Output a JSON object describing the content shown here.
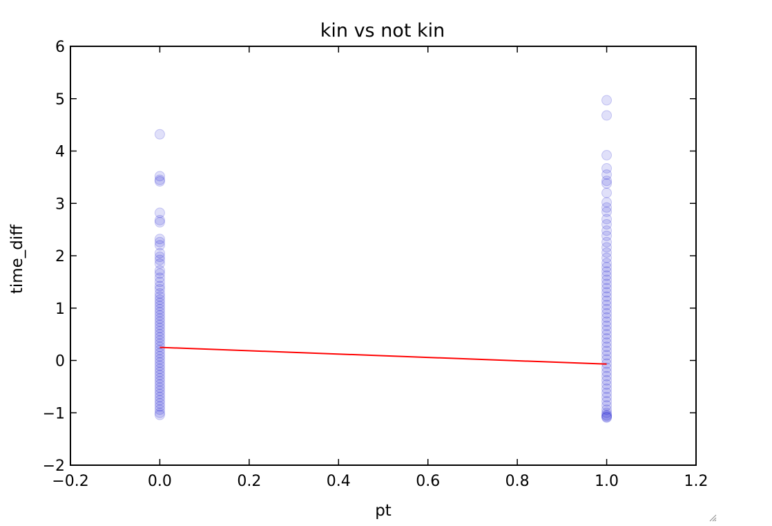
{
  "chart_data": {
    "type": "scatter",
    "title": "kin vs not kin",
    "xlabel": "pt",
    "ylabel": "time_diff",
    "xlim": [
      -0.2,
      1.2
    ],
    "ylim": [
      -2,
      6
    ],
    "xticks": [
      -0.2,
      0.0,
      0.2,
      0.4,
      0.6,
      0.8,
      1.0,
      1.2
    ],
    "yticks": [
      -2,
      -1,
      0,
      1,
      2,
      3,
      4,
      5,
      6
    ],
    "xtick_labels": [
      "−0.2",
      "0.0",
      "0.2",
      "0.4",
      "0.6",
      "0.8",
      "1.0",
      "1.2"
    ],
    "ytick_labels": [
      "−2",
      "−1",
      "0",
      "1",
      "2",
      "3",
      "4",
      "5",
      "6"
    ],
    "grid": false,
    "legend": "none",
    "series": [
      {
        "type": "scatter",
        "color": "#0000cc",
        "alpha": 0.12,
        "points": [
          {
            "x": 0,
            "y": 4.32
          },
          {
            "x": 0,
            "y": 3.52
          },
          {
            "x": 0,
            "y": 3.45
          },
          {
            "x": 0,
            "y": 3.42
          },
          {
            "x": 0,
            "y": 2.82
          },
          {
            "x": 0,
            "y": 2.68
          },
          {
            "x": 0,
            "y": 2.64
          },
          {
            "x": 0,
            "y": 2.32
          },
          {
            "x": 0,
            "y": 2.26
          },
          {
            "x": 0,
            "y": 2.2
          },
          {
            "x": 0,
            "y": 2.05
          },
          {
            "x": 0,
            "y": 1.98
          },
          {
            "x": 0,
            "y": 1.92
          },
          {
            "x": 0,
            "y": 1.85
          },
          {
            "x": 0,
            "y": 1.72
          },
          {
            "x": 0,
            "y": 1.66
          },
          {
            "x": 0,
            "y": 1.58
          },
          {
            "x": 0,
            "y": 1.5
          },
          {
            "x": 0,
            "y": 1.42
          },
          {
            "x": 0,
            "y": 1.36
          },
          {
            "x": 0,
            "y": 1.28
          },
          {
            "x": 0,
            "y": 1.22
          },
          {
            "x": 0,
            "y": 1.16
          },
          {
            "x": 0,
            "y": 1.1
          },
          {
            "x": 0,
            "y": 1.04
          },
          {
            "x": 0,
            "y": 0.98
          },
          {
            "x": 0,
            "y": 0.92
          },
          {
            "x": 0,
            "y": 0.86
          },
          {
            "x": 0,
            "y": 0.8
          },
          {
            "x": 0,
            "y": 0.74
          },
          {
            "x": 0,
            "y": 0.68
          },
          {
            "x": 0,
            "y": 0.62
          },
          {
            "x": 0,
            "y": 0.56
          },
          {
            "x": 0,
            "y": 0.5
          },
          {
            "x": 0,
            "y": 0.44
          },
          {
            "x": 0,
            "y": 0.38
          },
          {
            "x": 0,
            "y": 0.32
          },
          {
            "x": 0,
            "y": 0.26
          },
          {
            "x": 0,
            "y": 0.2
          },
          {
            "x": 0,
            "y": 0.14
          },
          {
            "x": 0,
            "y": 0.08
          },
          {
            "x": 0,
            "y": 0.02
          },
          {
            "x": 0,
            "y": -0.04
          },
          {
            "x": 0,
            "y": -0.1
          },
          {
            "x": 0,
            "y": -0.16
          },
          {
            "x": 0,
            "y": -0.22
          },
          {
            "x": 0,
            "y": -0.28
          },
          {
            "x": 0,
            "y": -0.34
          },
          {
            "x": 0,
            "y": -0.4
          },
          {
            "x": 0,
            "y": -0.46
          },
          {
            "x": 0,
            "y": -0.52
          },
          {
            "x": 0,
            "y": -0.58
          },
          {
            "x": 0,
            "y": -0.64
          },
          {
            "x": 0,
            "y": -0.7
          },
          {
            "x": 0,
            "y": -0.76
          },
          {
            "x": 0,
            "y": -0.82
          },
          {
            "x": 0,
            "y": -0.88
          },
          {
            "x": 0,
            "y": -0.94
          },
          {
            "x": 0,
            "y": -1.0
          },
          {
            "x": 0,
            "y": -1.04
          },
          {
            "x": 1,
            "y": 4.97
          },
          {
            "x": 1,
            "y": 4.68
          },
          {
            "x": 1,
            "y": 3.92
          },
          {
            "x": 1,
            "y": 3.67
          },
          {
            "x": 1,
            "y": 3.55
          },
          {
            "x": 1,
            "y": 3.43
          },
          {
            "x": 1,
            "y": 3.38
          },
          {
            "x": 1,
            "y": 3.2
          },
          {
            "x": 1,
            "y": 3.02
          },
          {
            "x": 1,
            "y": 2.92
          },
          {
            "x": 1,
            "y": 2.84
          },
          {
            "x": 1,
            "y": 2.7
          },
          {
            "x": 1,
            "y": 2.6
          },
          {
            "x": 1,
            "y": 2.48
          },
          {
            "x": 1,
            "y": 2.38
          },
          {
            "x": 1,
            "y": 2.26
          },
          {
            "x": 1,
            "y": 2.16
          },
          {
            "x": 1,
            "y": 2.06
          },
          {
            "x": 1,
            "y": 1.96
          },
          {
            "x": 1,
            "y": 1.86
          },
          {
            "x": 1,
            "y": 1.78
          },
          {
            "x": 1,
            "y": 1.7
          },
          {
            "x": 1,
            "y": 1.62
          },
          {
            "x": 1,
            "y": 1.54
          },
          {
            "x": 1,
            "y": 1.46
          },
          {
            "x": 1,
            "y": 1.38
          },
          {
            "x": 1,
            "y": 1.3
          },
          {
            "x": 1,
            "y": 1.22
          },
          {
            "x": 1,
            "y": 1.14
          },
          {
            "x": 1,
            "y": 1.06
          },
          {
            "x": 1,
            "y": 0.98
          },
          {
            "x": 1,
            "y": 0.9
          },
          {
            "x": 1,
            "y": 0.82
          },
          {
            "x": 1,
            "y": 0.74
          },
          {
            "x": 1,
            "y": 0.66
          },
          {
            "x": 1,
            "y": 0.58
          },
          {
            "x": 1,
            "y": 0.5
          },
          {
            "x": 1,
            "y": 0.42
          },
          {
            "x": 1,
            "y": 0.34
          },
          {
            "x": 1,
            "y": 0.26
          },
          {
            "x": 1,
            "y": 0.18
          },
          {
            "x": 1,
            "y": 0.1
          },
          {
            "x": 1,
            "y": 0.02
          },
          {
            "x": 1,
            "y": -0.06
          },
          {
            "x": 1,
            "y": -0.14
          },
          {
            "x": 1,
            "y": -0.22
          },
          {
            "x": 1,
            "y": -0.3
          },
          {
            "x": 1,
            "y": -0.38
          },
          {
            "x": 1,
            "y": -0.46
          },
          {
            "x": 1,
            "y": -0.54
          },
          {
            "x": 1,
            "y": -0.62
          },
          {
            "x": 1,
            "y": -0.7
          },
          {
            "x": 1,
            "y": -0.78
          },
          {
            "x": 1,
            "y": -0.86
          },
          {
            "x": 1,
            "y": -0.94
          },
          {
            "x": 1,
            "y": -1.0
          },
          {
            "x": 1,
            "y": -1.04
          },
          {
            "x": 1,
            "y": -1.06
          },
          {
            "x": 1,
            "y": -1.08
          },
          {
            "x": 1,
            "y": -1.09
          }
        ]
      },
      {
        "type": "line",
        "color": "#ff0000",
        "points": [
          {
            "x": 0,
            "y": 0.25
          },
          {
            "x": 1,
            "y": -0.07
          }
        ]
      }
    ]
  }
}
